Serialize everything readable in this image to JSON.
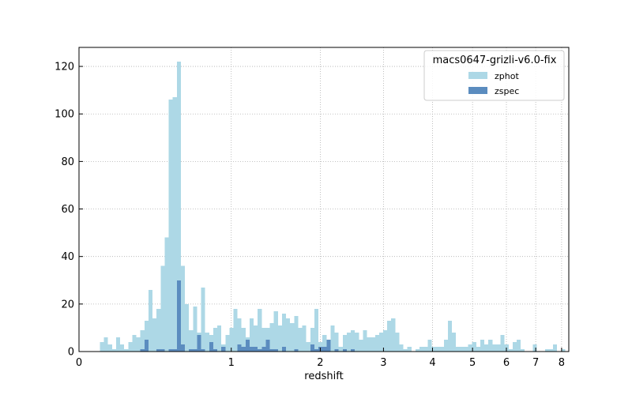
{
  "chart_data": {
    "type": "bar",
    "xlabel": "redshift",
    "ylabel": "",
    "x_scale": "log(1+z)",
    "xlim": [
      0,
      8.3
    ],
    "ylim": [
      0,
      128
    ],
    "xticks": [
      {
        "value": 0,
        "label": "0"
      },
      {
        "value": 1,
        "label": "1"
      },
      {
        "value": 2,
        "label": "2"
      },
      {
        "value": 3,
        "label": "3"
      },
      {
        "value": 4,
        "label": "4"
      },
      {
        "value": 5,
        "label": "5"
      },
      {
        "value": 6,
        "label": "6"
      },
      {
        "value": 7,
        "label": "7"
      },
      {
        "value": 8,
        "label": "8"
      }
    ],
    "yticks": [
      {
        "value": 0,
        "label": "0"
      },
      {
        "value": 20,
        "label": "20"
      },
      {
        "value": 40,
        "label": "40"
      },
      {
        "value": 60,
        "label": "60"
      },
      {
        "value": 80,
        "label": "80"
      },
      {
        "value": 100,
        "label": "100"
      },
      {
        "value": 120,
        "label": "120"
      }
    ],
    "grid": true,
    "legend": {
      "title": "macs0647-grizli-v6.0-fix",
      "placement": "top-right"
    },
    "bins": {
      "x_start": 0.1,
      "log_step": 0.008
    },
    "series": [
      {
        "name": "zphot",
        "color": "#add8e6",
        "values": [
          4,
          6,
          3,
          1,
          6,
          3,
          1,
          4,
          7,
          6,
          9,
          13,
          26,
          14,
          18,
          36,
          48,
          106,
          107,
          122,
          36,
          20,
          9,
          19,
          8,
          27,
          8,
          7,
          10,
          11,
          3,
          7,
          10,
          18,
          14,
          10,
          6,
          14,
          11,
          18,
          10,
          10,
          12,
          17,
          11,
          16,
          14,
          12,
          15,
          10,
          11,
          4,
          10,
          18,
          4,
          7,
          5,
          11,
          8,
          2,
          7,
          8,
          9,
          8,
          5,
          9,
          6,
          6,
          7,
          8,
          9,
          13,
          14,
          8,
          3,
          1,
          2,
          0,
          1,
          2,
          2,
          5,
          2,
          2,
          2,
          5,
          13,
          8,
          2,
          2,
          2,
          3,
          4,
          2,
          5,
          3,
          5,
          3,
          3,
          7,
          3,
          1,
          4,
          5,
          1,
          0,
          0,
          3,
          0,
          0,
          1,
          1,
          3,
          0,
          1
        ]
      },
      {
        "name": "zspec",
        "color": "#5b8cbf",
        "values": [
          0,
          0,
          0,
          0,
          0,
          0,
          0,
          0,
          0,
          0,
          1,
          5,
          0,
          0,
          1,
          1,
          0,
          1,
          1,
          30,
          3,
          0,
          1,
          1,
          7,
          1,
          0,
          4,
          1,
          0,
          2,
          0,
          0,
          0,
          3,
          2,
          5,
          2,
          2,
          1,
          2,
          5,
          1,
          1,
          0,
          2,
          0,
          0,
          1,
          0,
          0,
          0,
          3,
          1,
          2,
          2,
          5,
          0,
          1,
          0,
          1,
          0,
          1
        ]
      }
    ]
  }
}
